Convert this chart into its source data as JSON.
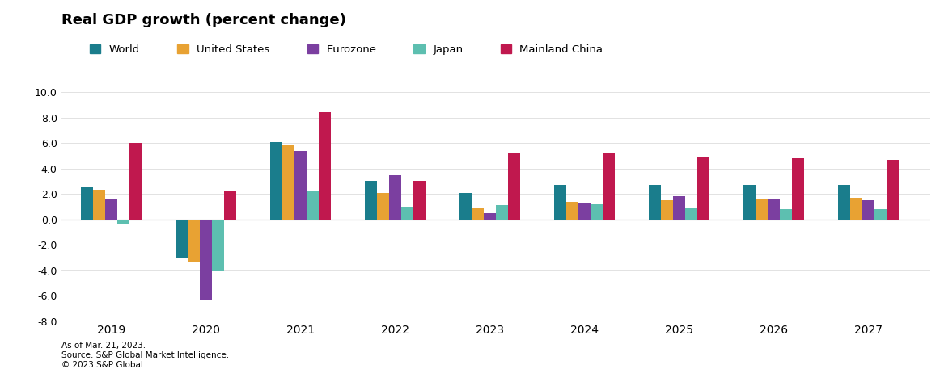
{
  "title": "Real GDP growth (percent change)",
  "years": [
    2019,
    2020,
    2021,
    2022,
    2023,
    2024,
    2025,
    2026,
    2027
  ],
  "series": {
    "World": [
      2.6,
      -3.1,
      6.1,
      3.0,
      2.1,
      2.7,
      2.7,
      2.7,
      2.7
    ],
    "United States": [
      2.3,
      -3.4,
      5.9,
      2.1,
      0.9,
      1.4,
      1.5,
      1.6,
      1.7
    ],
    "Eurozone": [
      1.6,
      -6.3,
      5.4,
      3.5,
      0.5,
      1.3,
      1.8,
      1.6,
      1.5
    ],
    "Japan": [
      -0.4,
      -4.1,
      2.2,
      1.0,
      1.1,
      1.2,
      0.9,
      0.8,
      0.8
    ],
    "Mainland China": [
      6.0,
      2.2,
      8.4,
      3.0,
      5.2,
      5.2,
      4.9,
      4.8,
      4.7
    ]
  },
  "colors": {
    "World": "#1a7d8c",
    "United States": "#e8a233",
    "Eurozone": "#7b3fa0",
    "Japan": "#5dbfb0",
    "Mainland China": "#c0184e"
  },
  "ylim": [
    -8.0,
    10.0
  ],
  "yticks": [
    -8.0,
    -6.0,
    -4.0,
    -2.0,
    0.0,
    2.0,
    4.0,
    6.0,
    8.0,
    10.0
  ],
  "footnote1": "As of Mar. 21, 2023.",
  "footnote2": "Source: S&P Global Market Intelligence.",
  "footnote3": "© 2023 S&P Global."
}
